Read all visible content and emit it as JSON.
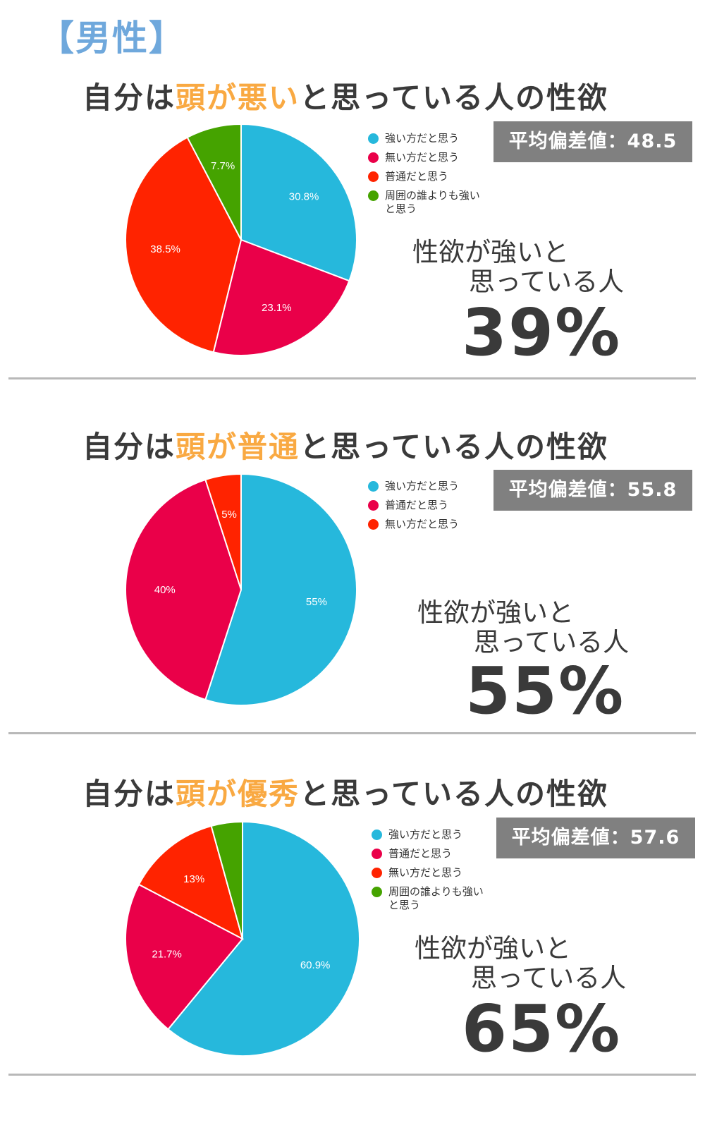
{
  "header": "【男性】",
  "strong_label_line1": "性欲が強いと",
  "strong_label_line2": "思っている人",
  "chart_data": [
    {
      "type": "pie",
      "title_prefix": "自分は",
      "title_highlight": "頭が悪い",
      "title_suffix": "と思っている人の性欲",
      "badge": "平均偏差値：48.5",
      "percent": "39%",
      "slices": [
        {
          "label": "強い方だと思う",
          "value": 30.8,
          "display": "30.8%",
          "color": "#26b8dc"
        },
        {
          "label": "無い方だと思う",
          "value": 23.1,
          "display": "23.1%",
          "color": "#ea0049"
        },
        {
          "label": "普通だと思う",
          "value": 38.5,
          "display": "38.5%",
          "color": "#ff2300"
        },
        {
          "label": "周囲の誰よりも強いと思う",
          "value": 7.7,
          "display": "7.7%",
          "color": "#45a300"
        }
      ]
    },
    {
      "type": "pie",
      "title_prefix": "自分は",
      "title_highlight": "頭が普通",
      "title_suffix": "と思っている人の性欲",
      "badge": "平均偏差値：55.8",
      "percent": "55%",
      "slices": [
        {
          "label": "強い方だと思う",
          "value": 55,
          "display": "55%",
          "color": "#26b8dc"
        },
        {
          "label": "普通だと思う",
          "value": 40,
          "display": "40%",
          "color": "#ea0049"
        },
        {
          "label": "無い方だと思う",
          "value": 5,
          "display": "5%",
          "color": "#ff2300"
        }
      ]
    },
    {
      "type": "pie",
      "title_prefix": "自分は",
      "title_highlight": "頭が優秀",
      "title_suffix": "と思っている人の性欲",
      "badge": "平均偏差値：57.6",
      "percent": "65%",
      "slices": [
        {
          "label": "強い方だと思う",
          "value": 60.9,
          "display": "60.9%",
          "color": "#26b8dc"
        },
        {
          "label": "普通だと思う",
          "value": 21.7,
          "display": "21.7%",
          "color": "#ea0049"
        },
        {
          "label": "無い方だと思う",
          "value": 13,
          "display": "13%",
          "color": "#ff2300"
        },
        {
          "label": "周囲の誰よりも強いと思う",
          "value": 4.3,
          "display": "",
          "color": "#45a300"
        }
      ]
    }
  ]
}
